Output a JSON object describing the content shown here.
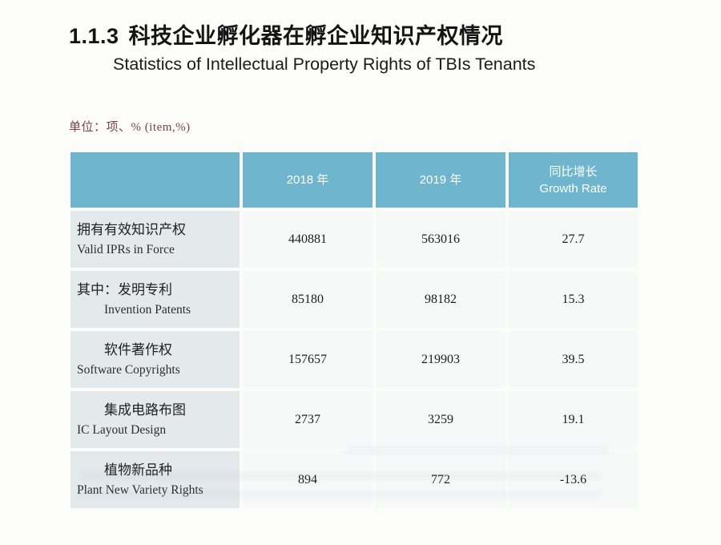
{
  "page": {
    "section_number": "1.1.3",
    "title_zh": "科技企业孵化器在孵企业知识产权情况",
    "title_en": "Statistics of Intellectual Property Rights of TBIs Tenants",
    "unit_note": "单位：项、% (item,%)"
  },
  "colors": {
    "header_bg": "#6fb5cd",
    "label_col_bg": "#e4e9ec",
    "data_cell_bg": "#f7f9f9",
    "unit_text": "#7c4242"
  },
  "table": {
    "header": {
      "col_label": "",
      "col_2018": "2018 年",
      "col_2019": "2019 年",
      "col_growth_zh": "同比增长",
      "col_growth_en": "Growth Rate"
    },
    "rows": [
      {
        "label_zh": "拥有有效知识产权",
        "label_en": "Valid IPRs in Force",
        "y2018": "440881",
        "y2019": "563016",
        "growth": "27.7"
      },
      {
        "label_zh": "其中：发明专利",
        "label_en": "Invention Patents",
        "y2018": "85180",
        "y2019": "98182",
        "growth": "15.3"
      },
      {
        "label_zh": "软件著作权",
        "label_en": "Software Copyrights",
        "y2018": "157657",
        "y2019": "219903",
        "growth": "39.5"
      },
      {
        "label_zh": "集成电路布图",
        "label_en": "IC Layout Design",
        "y2018": "2737",
        "y2019": "3259",
        "growth": "19.1"
      },
      {
        "label_zh": "植物新品种",
        "label_en": "Plant New Variety Rights",
        "y2018": "894",
        "y2019": "772",
        "growth": "-13.6"
      }
    ]
  }
}
